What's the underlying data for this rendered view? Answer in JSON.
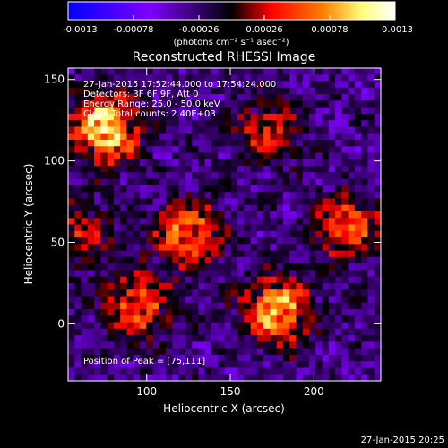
{
  "chart_data": {
    "type": "heatmap",
    "title": "Reconstructed RHESSI Image",
    "xlabel": "Heliocentric X (arcsec)",
    "ylabel": "Heliocentric Y (arcsec)",
    "xlim": [
      53,
      240
    ],
    "ylim": [
      -35,
      157
    ],
    "xticks": [
      100,
      150,
      200
    ],
    "yticks": [
      0,
      50,
      100,
      150
    ],
    "colorbar": {
      "min": -0.0013,
      "max": 0.0013,
      "ticks": [
        -0.0013,
        -0.00078,
        -0.00026,
        0.00026,
        0.00078,
        0.0013
      ],
      "tick_labels": [
        "-0.0013",
        "-0.00078",
        "-0.00026",
        "0.00026",
        "0.00078",
        "0.0013"
      ],
      "label": "(photons cm⁻² s⁻¹ asec⁻²)",
      "colors": [
        "#0000ff",
        "#7f00ff",
        "#000000",
        "#ff0000",
        "#ff8000",
        "#ffff80",
        "#ffffff"
      ]
    },
    "annotations": [
      "27-Jan-2015 17:52:44.000 to 17:54:24.000",
      "Detectors: 3F 6F 9F, Att 0",
      "Energy Range: 25.0 - 50.0 keV",
      "Clean    Total counts: 2.40E+03",
      "Position of Peak = [75,111]"
    ],
    "peak": {
      "x": 75,
      "y": 111
    },
    "sources": [
      {
        "x": 75,
        "y": 120,
        "peak": 0.0013
      },
      {
        "x": 125,
        "y": 55,
        "peak": 0.0009
      },
      {
        "x": 178,
        "y": 8,
        "peak": 0.0011
      },
      {
        "x": 220,
        "y": 60,
        "peak": 0.0008
      },
      {
        "x": 95,
        "y": 10,
        "peak": 0.0008
      },
      {
        "x": 172,
        "y": 118,
        "peak": 0.0006
      },
      {
        "x": 60,
        "y": 55,
        "peak": 0.0005
      }
    ]
  },
  "footer": {
    "timestamp": "27-Jan-2015 20:25"
  }
}
